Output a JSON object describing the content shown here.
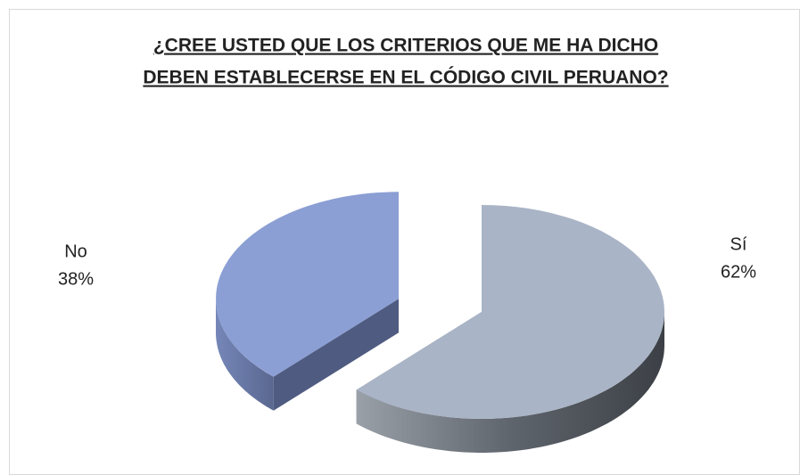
{
  "chart_data": {
    "type": "pie3d",
    "title": [
      "¿CREE USTED QUE LOS CRITERIOS QUE ME HA DICHO",
      "DEBEN ESTABLECERSE EN EL CÓDIGO CIVIL PERUANO?"
    ],
    "categories": [
      "Sí",
      "No"
    ],
    "values": [
      62,
      38
    ],
    "value_labels": [
      "62%",
      "38%"
    ],
    "colors": [
      "#a9b4c6",
      "#8c9fd4"
    ],
    "exploded": "No"
  }
}
